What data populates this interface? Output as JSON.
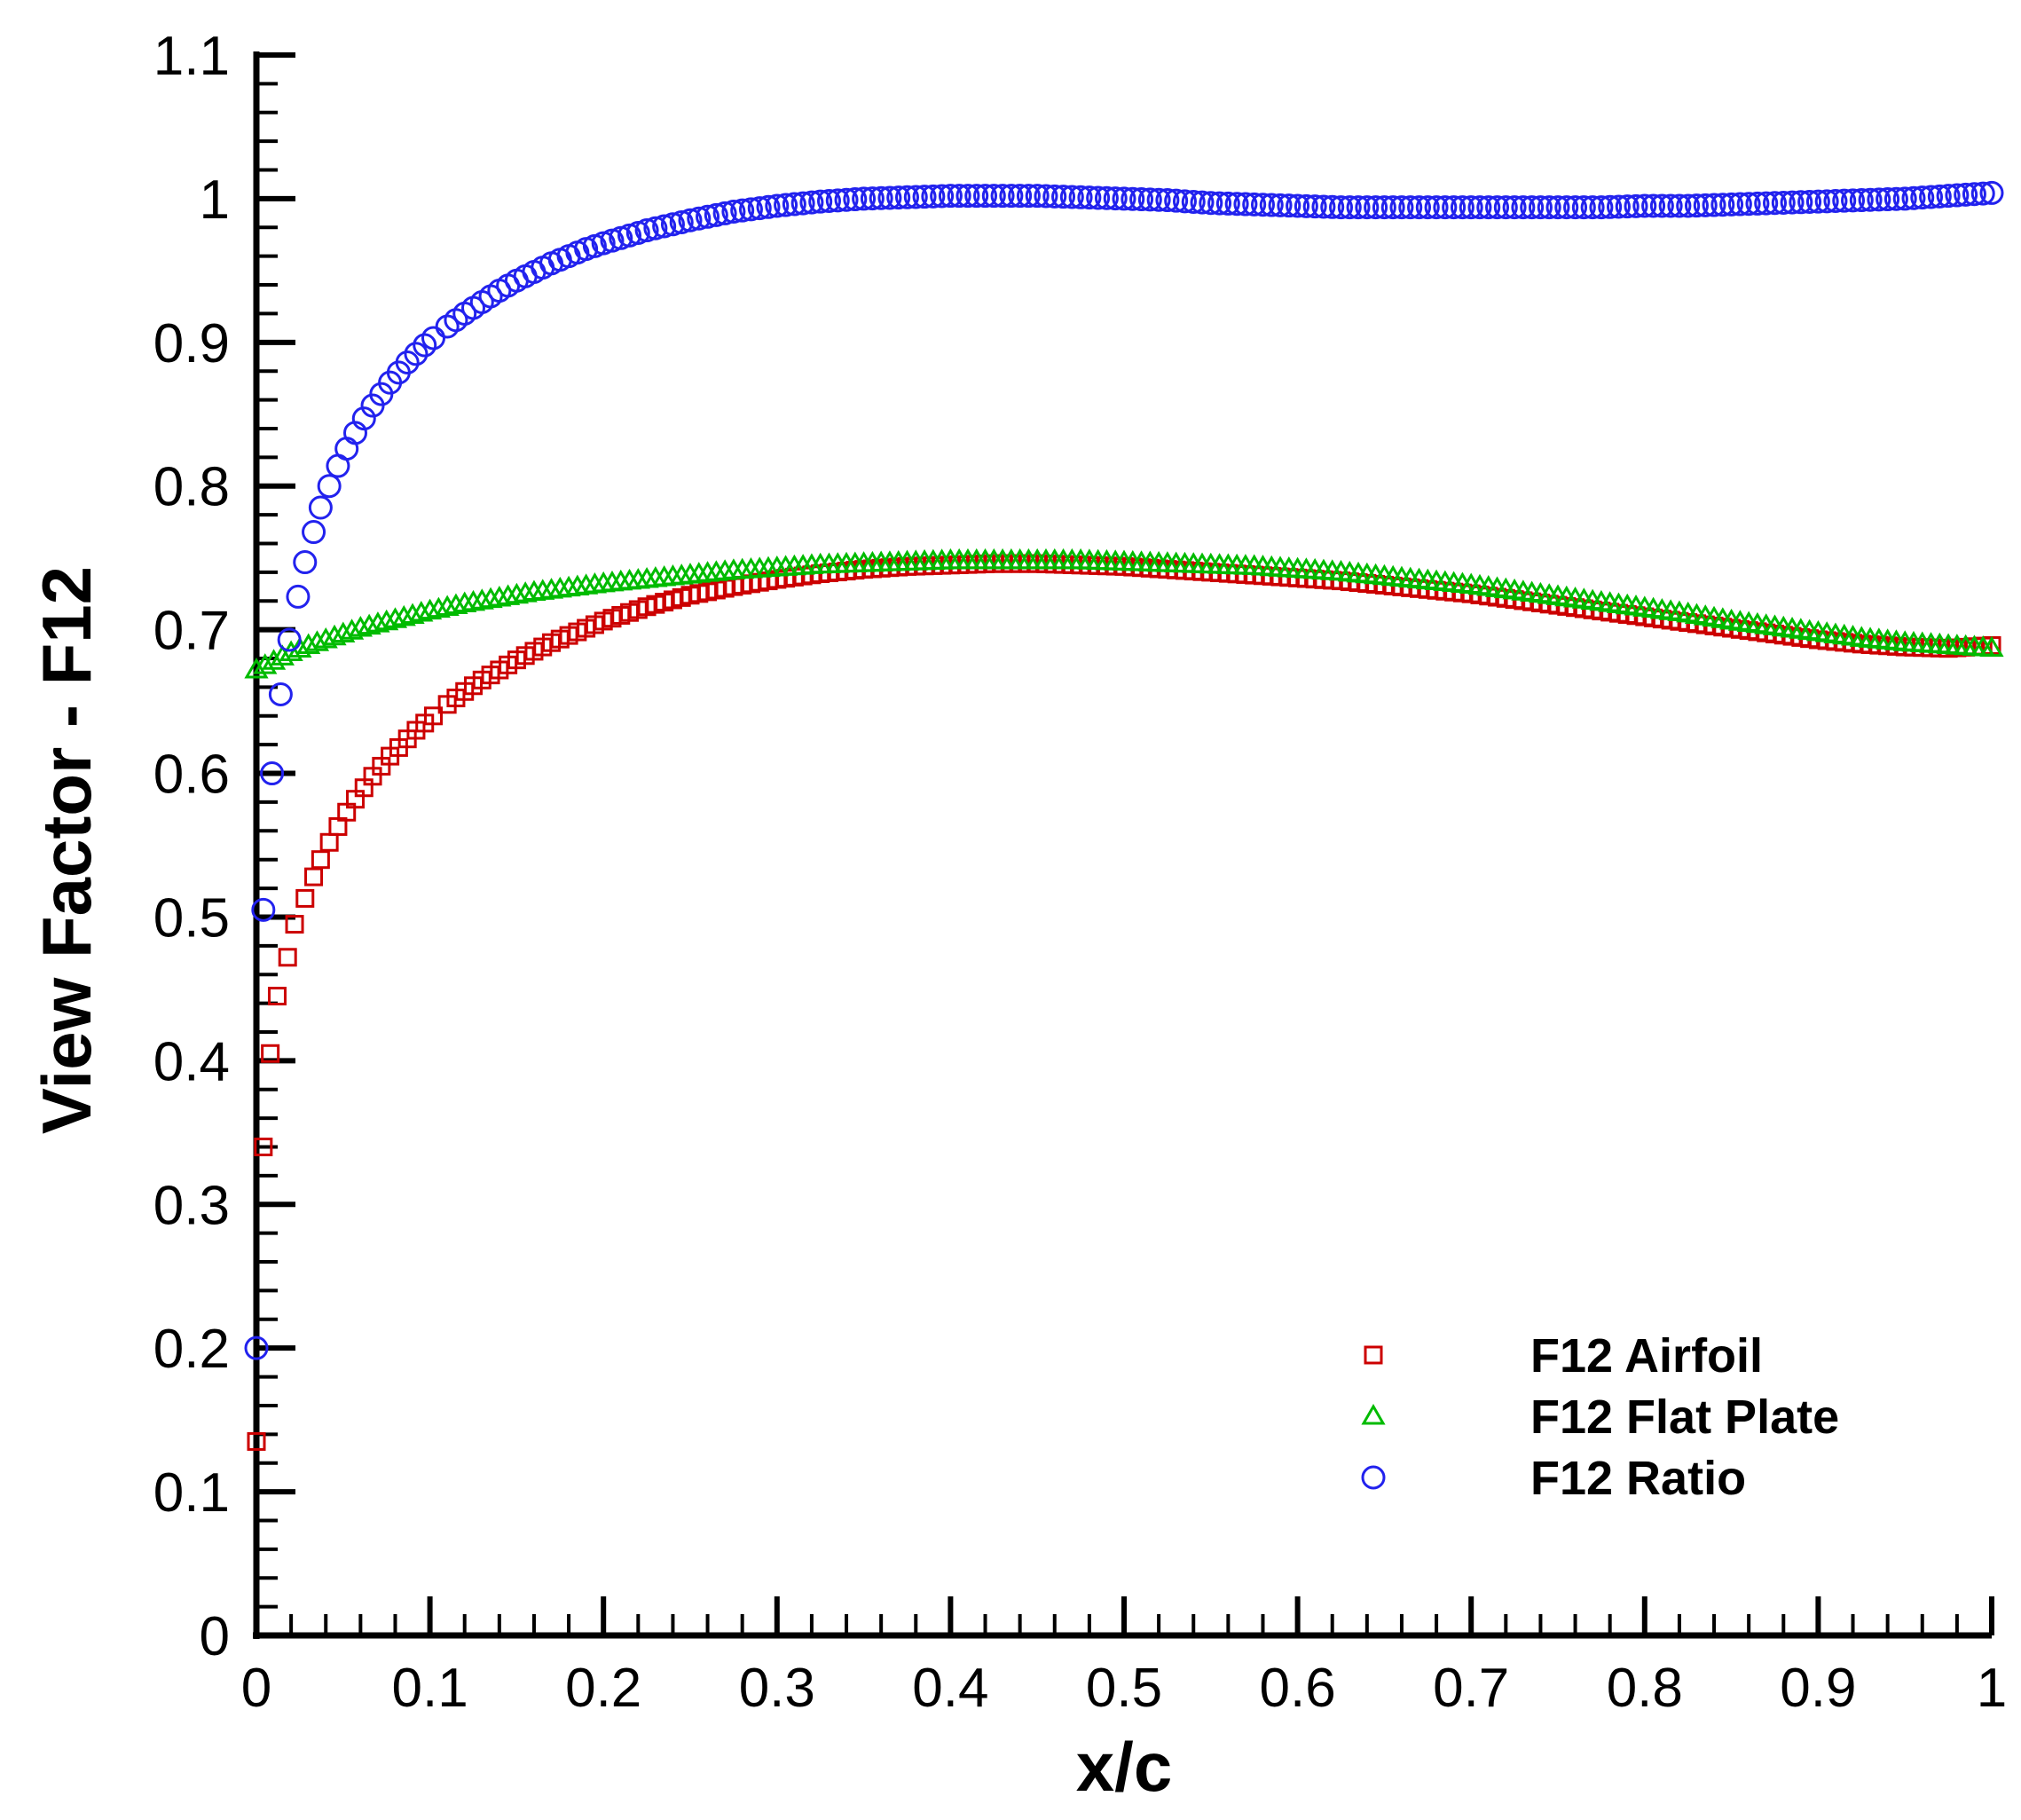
{
  "chart_data": {
    "type": "scatter",
    "xlabel": "x/c",
    "ylabel": "View Factor - F12",
    "xlim": [
      0,
      1
    ],
    "ylim": [
      0,
      1.1
    ],
    "x_ticks": [
      "0",
      "0.1",
      "0.2",
      "0.3",
      "0.4",
      "0.5",
      "0.6",
      "0.7",
      "0.8",
      "0.9",
      "1"
    ],
    "y_ticks": [
      "0",
      "0.1",
      "0.2",
      "0.3",
      "0.4",
      "0.5",
      "0.6",
      "0.7",
      "0.8",
      "0.9",
      "1",
      "1.1"
    ],
    "grid": false,
    "legend_position": "bottom-right",
    "series": [
      {
        "name": "F12 Airfoil",
        "marker": "square",
        "color": "#cc0000",
        "points": [
          [
            0.0,
            0.135
          ],
          [
            0.004,
            0.34
          ],
          [
            0.008,
            0.405
          ],
          [
            0.012,
            0.445
          ],
          [
            0.018,
            0.472
          ],
          [
            0.022,
            0.495
          ],
          [
            0.028,
            0.513
          ],
          [
            0.033,
            0.528
          ],
          [
            0.037,
            0.54
          ],
          [
            0.042,
            0.552
          ],
          [
            0.047,
            0.563
          ],
          [
            0.052,
            0.573
          ],
          [
            0.057,
            0.582
          ],
          [
            0.062,
            0.59
          ],
          [
            0.067,
            0.598
          ],
          [
            0.072,
            0.605
          ],
          [
            0.077,
            0.612
          ],
          [
            0.082,
            0.618
          ],
          [
            0.087,
            0.624
          ],
          [
            0.092,
            0.63
          ],
          [
            0.097,
            0.635
          ],
          [
            0.102,
            0.64
          ],
          [
            0.11,
            0.648
          ],
          [
            0.12,
            0.657
          ],
          [
            0.13,
            0.665
          ],
          [
            0.14,
            0.672
          ],
          [
            0.15,
            0.679
          ],
          [
            0.16,
            0.685
          ],
          [
            0.17,
            0.691
          ],
          [
            0.18,
            0.696
          ],
          [
            0.19,
            0.701
          ],
          [
            0.2,
            0.706
          ],
          [
            0.225,
            0.716
          ],
          [
            0.25,
            0.724
          ],
          [
            0.275,
            0.73
          ],
          [
            0.3,
            0.735
          ],
          [
            0.325,
            0.739
          ],
          [
            0.35,
            0.742
          ],
          [
            0.375,
            0.744
          ],
          [
            0.4,
            0.745
          ],
          [
            0.425,
            0.746
          ],
          [
            0.45,
            0.746
          ],
          [
            0.475,
            0.745
          ],
          [
            0.5,
            0.744
          ],
          [
            0.525,
            0.742
          ],
          [
            0.55,
            0.74
          ],
          [
            0.575,
            0.738
          ],
          [
            0.6,
            0.736
          ],
          [
            0.625,
            0.734
          ],
          [
            0.65,
            0.731
          ],
          [
            0.675,
            0.728
          ],
          [
            0.7,
            0.725
          ],
          [
            0.725,
            0.721
          ],
          [
            0.75,
            0.717
          ],
          [
            0.775,
            0.713
          ],
          [
            0.8,
            0.709
          ],
          [
            0.825,
            0.705
          ],
          [
            0.85,
            0.701
          ],
          [
            0.875,
            0.697
          ],
          [
            0.9,
            0.693
          ],
          [
            0.925,
            0.69
          ],
          [
            0.95,
            0.688
          ],
          [
            0.975,
            0.687
          ],
          [
            1.0,
            0.689
          ]
        ]
      },
      {
        "name": "F12 Flat Plate",
        "marker": "triangle",
        "color": "#00bb00",
        "points": [
          [
            0.0,
            0.672
          ],
          [
            0.01,
            0.678
          ],
          [
            0.02,
            0.684
          ],
          [
            0.03,
            0.689
          ],
          [
            0.04,
            0.693
          ],
          [
            0.05,
            0.697
          ],
          [
            0.06,
            0.701
          ],
          [
            0.07,
            0.704
          ],
          [
            0.08,
            0.707
          ],
          [
            0.09,
            0.71
          ],
          [
            0.1,
            0.713
          ],
          [
            0.12,
            0.718
          ],
          [
            0.14,
            0.722
          ],
          [
            0.16,
            0.726
          ],
          [
            0.18,
            0.729
          ],
          [
            0.2,
            0.732
          ],
          [
            0.225,
            0.735
          ],
          [
            0.25,
            0.738
          ],
          [
            0.275,
            0.741
          ],
          [
            0.3,
            0.743
          ],
          [
            0.325,
            0.745
          ],
          [
            0.35,
            0.746
          ],
          [
            0.375,
            0.747
          ],
          [
            0.4,
            0.748
          ],
          [
            0.425,
            0.748
          ],
          [
            0.45,
            0.748
          ],
          [
            0.475,
            0.748
          ],
          [
            0.5,
            0.747
          ],
          [
            0.525,
            0.746
          ],
          [
            0.55,
            0.745
          ],
          [
            0.575,
            0.744
          ],
          [
            0.6,
            0.742
          ],
          [
            0.625,
            0.74
          ],
          [
            0.65,
            0.737
          ],
          [
            0.675,
            0.734
          ],
          [
            0.7,
            0.731
          ],
          [
            0.725,
            0.727
          ],
          [
            0.75,
            0.723
          ],
          [
            0.775,
            0.719
          ],
          [
            0.8,
            0.715
          ],
          [
            0.825,
            0.711
          ],
          [
            0.85,
            0.706
          ],
          [
            0.875,
            0.702
          ],
          [
            0.9,
            0.698
          ],
          [
            0.925,
            0.694
          ],
          [
            0.95,
            0.691
          ],
          [
            0.975,
            0.689
          ],
          [
            1.0,
            0.687
          ]
        ]
      },
      {
        "name": "F12 Ratio",
        "marker": "circle",
        "color": "#2222ee",
        "points": [
          [
            0.0,
            0.2
          ],
          [
            0.004,
            0.505
          ],
          [
            0.009,
            0.6
          ],
          [
            0.014,
            0.655
          ],
          [
            0.019,
            0.693
          ],
          [
            0.024,
            0.723
          ],
          [
            0.028,
            0.747
          ],
          [
            0.033,
            0.768
          ],
          [
            0.037,
            0.785
          ],
          [
            0.042,
            0.8
          ],
          [
            0.047,
            0.814
          ],
          [
            0.052,
            0.826
          ],
          [
            0.057,
            0.837
          ],
          [
            0.062,
            0.847
          ],
          [
            0.067,
            0.856
          ],
          [
            0.072,
            0.864
          ],
          [
            0.077,
            0.872
          ],
          [
            0.082,
            0.879
          ],
          [
            0.087,
            0.886
          ],
          [
            0.092,
            0.892
          ],
          [
            0.097,
            0.898
          ],
          [
            0.102,
            0.903
          ],
          [
            0.11,
            0.911
          ],
          [
            0.12,
            0.92
          ],
          [
            0.13,
            0.928
          ],
          [
            0.14,
            0.936
          ],
          [
            0.15,
            0.943
          ],
          [
            0.16,
            0.949
          ],
          [
            0.17,
            0.955
          ],
          [
            0.18,
            0.96
          ],
          [
            0.19,
            0.965
          ],
          [
            0.2,
            0.969
          ],
          [
            0.225,
            0.978
          ],
          [
            0.25,
            0.985
          ],
          [
            0.275,
            0.991
          ],
          [
            0.3,
            0.995
          ],
          [
            0.325,
            0.998
          ],
          [
            0.35,
            1.0
          ],
          [
            0.375,
            1.001
          ],
          [
            0.4,
            1.002
          ],
          [
            0.425,
            1.002
          ],
          [
            0.45,
            1.002
          ],
          [
            0.475,
            1.001
          ],
          [
            0.5,
            1.0
          ],
          [
            0.525,
            0.999
          ],
          [
            0.55,
            0.997
          ],
          [
            0.575,
            0.996
          ],
          [
            0.6,
            0.995
          ],
          [
            0.625,
            0.994
          ],
          [
            0.65,
            0.994
          ],
          [
            0.675,
            0.994
          ],
          [
            0.7,
            0.994
          ],
          [
            0.725,
            0.994
          ],
          [
            0.75,
            0.994
          ],
          [
            0.775,
            0.994
          ],
          [
            0.8,
            0.995
          ],
          [
            0.825,
            0.995
          ],
          [
            0.85,
            0.996
          ],
          [
            0.875,
            0.997
          ],
          [
            0.9,
            0.998
          ],
          [
            0.925,
            0.999
          ],
          [
            0.95,
            1.0
          ],
          [
            0.975,
            1.002
          ],
          [
            1.0,
            1.004
          ]
        ]
      }
    ]
  }
}
